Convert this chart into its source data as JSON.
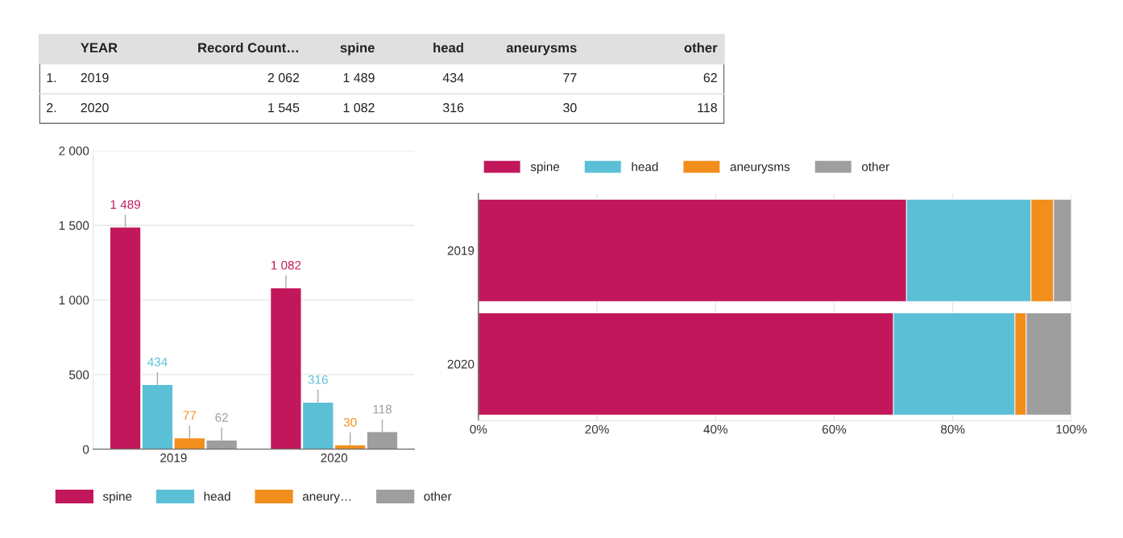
{
  "chart_data": [
    {
      "type": "other",
      "categories": [
        "YEAR",
        "Record Count…",
        "spine",
        "head",
        "aneurysms",
        "other"
      ],
      "y_categories": [
        "1.",
        "2."
      ],
      "cell_labels": [
        [
          "2019",
          "2 062",
          "1 489",
          "434",
          "77",
          "62"
        ],
        [
          "2020",
          "1 545",
          "1 082",
          "316",
          "30",
          "118"
        ]
      ]
    },
    {
      "type": "bar",
      "categories": [
        "2019",
        "2020"
      ],
      "ylim": [
        0,
        2000
      ],
      "yticks": [
        {
          "value": 0,
          "label": "0"
        },
        {
          "value": 500,
          "label": "500"
        },
        {
          "value": 1000,
          "label": "1 000"
        },
        {
          "value": 1500,
          "label": "1 500"
        },
        {
          "value": 2000,
          "label": "2 000"
        }
      ],
      "grid": "y",
      "legend": "bottom",
      "series": [
        {
          "name": "spine",
          "color": "#c2185b",
          "values": [
            1489,
            1082
          ],
          "value_labels": [
            "1 489",
            "1 082"
          ]
        },
        {
          "name": "head",
          "color": "#5bc0d6",
          "values": [
            434,
            316
          ],
          "value_labels": [
            "434",
            "316"
          ]
        },
        {
          "name": "aneury…",
          "color": "#f28e1c",
          "values": [
            77,
            30
          ],
          "value_labels": [
            "77",
            "30"
          ]
        },
        {
          "name": "other",
          "color": "#9e9e9e",
          "values": [
            62,
            118
          ],
          "value_labels": [
            "62",
            "118"
          ]
        }
      ]
    },
    {
      "type": "bar",
      "orientation": "horizontal",
      "stacked": true,
      "categories": [
        "2019",
        "2020"
      ],
      "xlim": [
        0,
        100
      ],
      "xticks": [
        {
          "value": 0,
          "label": "0%"
        },
        {
          "value": 20,
          "label": "20%"
        },
        {
          "value": 40,
          "label": "40%"
        },
        {
          "value": 60,
          "label": "60%"
        },
        {
          "value": 80,
          "label": "80%"
        },
        {
          "value": 100,
          "label": "100%"
        }
      ],
      "grid": "x",
      "legend": "top left",
      "series": [
        {
          "name": "spine",
          "color": "#c2185b",
          "values": [
            72.2,
            70.0
          ]
        },
        {
          "name": "head",
          "color": "#5bc0d6",
          "values": [
            21.0,
            20.5
          ]
        },
        {
          "name": "aneurysms",
          "color": "#f28e1c",
          "values": [
            3.8,
            1.9
          ]
        },
        {
          "name": "other",
          "color": "#9e9e9e",
          "values": [
            3.0,
            7.6
          ]
        }
      ]
    }
  ]
}
